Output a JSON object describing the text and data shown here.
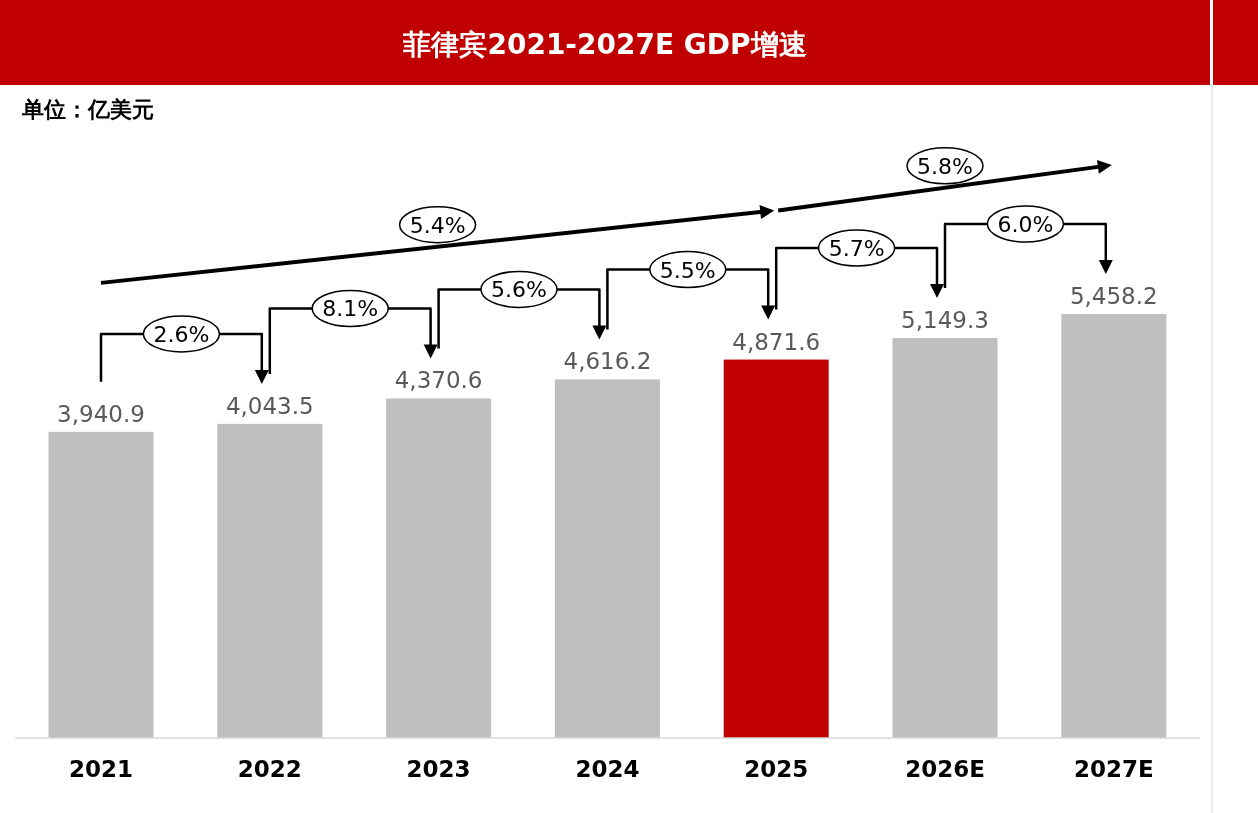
{
  "chart_data": {
    "type": "bar",
    "title": "菲律宾2021-2027E GDP增速",
    "subtitle": "单位：亿美元",
    "categories": [
      "2021",
      "2022",
      "2023",
      "2024",
      "2025",
      "2026E",
      "2027E"
    ],
    "values": [
      3940.9,
      4043.5,
      4370.6,
      4616.2,
      4871.6,
      5149.3,
      5458.2
    ],
    "colors": [
      "#bfbfbf",
      "#bfbfbf",
      "#bfbfbf",
      "#bfbfbf",
      "#c00000",
      "#bfbfbf",
      "#bfbfbf"
    ],
    "value_labels": [
      "3,940.9",
      "4,043.5",
      "4,370.6",
      "4,616.2",
      "4,871.6",
      "5,149.3",
      "5,458.2"
    ],
    "annotations": [
      "2.6%",
      "8.1%",
      "5.6%",
      "5.5%",
      "5.7%",
      "6.0%",
      "5.4%",
      "5.8%"
    ]
  }
}
